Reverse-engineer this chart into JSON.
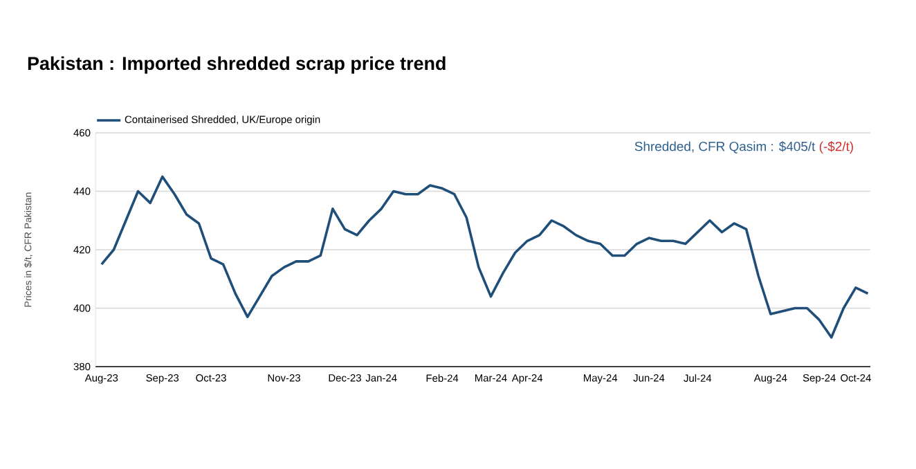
{
  "chart_data": {
    "type": "line",
    "title": "Pakistan : Imported shredded scrap price trend",
    "ylabel": "Prices in $/t, CFR Pakistan",
    "categories": [
      "Aug-23",
      null,
      null,
      null,
      null,
      "Sep-23",
      null,
      null,
      null,
      "Oct-23",
      null,
      null,
      null,
      null,
      null,
      "Nov-23",
      null,
      null,
      null,
      null,
      "Dec-23",
      null,
      null,
      "Jan-24",
      null,
      null,
      null,
      null,
      "Feb-24",
      null,
      null,
      null,
      "Mar-24",
      null,
      null,
      "Apr-24",
      null,
      null,
      null,
      null,
      null,
      "May-24",
      null,
      null,
      null,
      "Jun-24",
      null,
      null,
      null,
      "Jul-24",
      null,
      null,
      null,
      null,
      null,
      "Aug-24",
      null,
      null,
      null,
      "Sep-24",
      null,
      null,
      "Oct-24",
      null
    ],
    "series": [
      {
        "name": "Containerised Shredded, UK/Europe origin",
        "color": "#1f4e79",
        "values": [
          415,
          420,
          430,
          440,
          436,
          445,
          439,
          432,
          429,
          417,
          415,
          405,
          397,
          404,
          411,
          414,
          416,
          416,
          418,
          434,
          427,
          425,
          430,
          434,
          440,
          439,
          439,
          442,
          441,
          439,
          431,
          414,
          404,
          412,
          419,
          423,
          425,
          430,
          428,
          425,
          423,
          422,
          418,
          418,
          422,
          424,
          423,
          423,
          422,
          426,
          430,
          426,
          429,
          427,
          411,
          398,
          399,
          400,
          400,
          396,
          390,
          400,
          407,
          405
        ]
      }
    ],
    "ylim": [
      380,
      460
    ],
    "yticks": [
      380,
      400,
      420,
      440,
      460
    ],
    "grid": "y",
    "legend": "top left",
    "line_style": "solid",
    "marker": "none",
    "annotations": [
      "Shredded, CFR Qasim : $405/t",
      "(-$2/t)"
    ]
  }
}
